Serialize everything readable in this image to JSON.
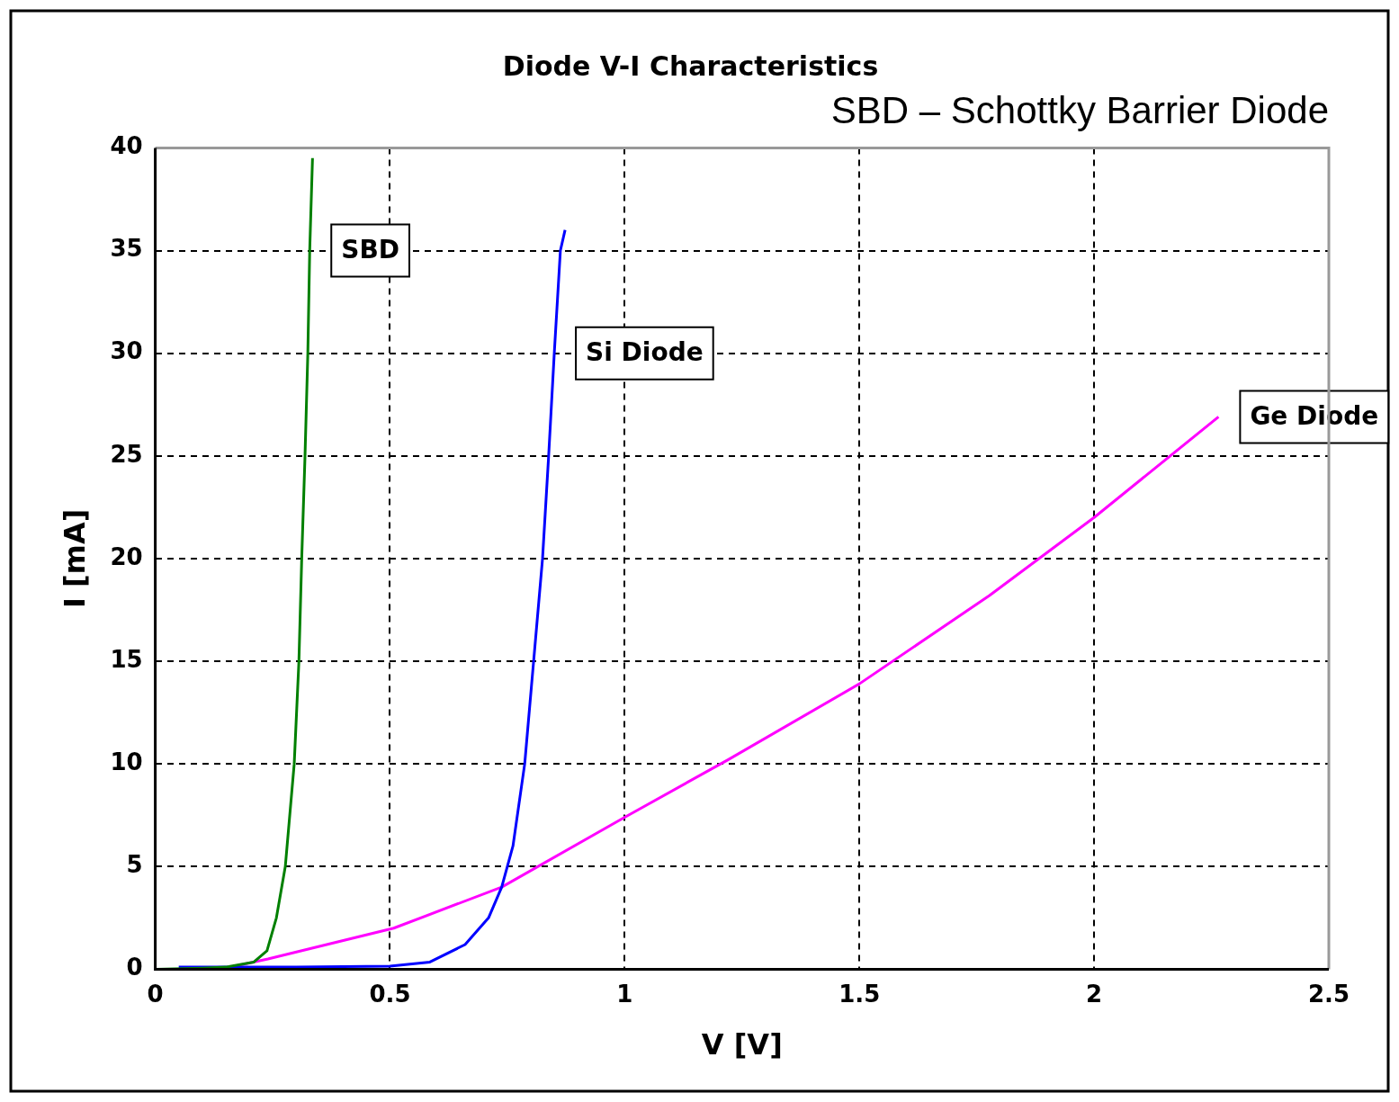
{
  "chart_data": {
    "type": "line",
    "title": "Diode V-I Characteristics",
    "subtitle": "SBD – Schottky Barrier Diode",
    "xlabel": "V [V]",
    "ylabel": "I [mA]",
    "xlim": [
      0,
      2.5
    ],
    "xticks": [
      0,
      0.5,
      1,
      1.5,
      2,
      2.5
    ],
    "ylim": [
      0,
      40
    ],
    "yticks": [
      0,
      5,
      10,
      15,
      20,
      25,
      30,
      35,
      40
    ],
    "grid": true,
    "legend": false,
    "marker": "none",
    "line_style": "solid",
    "series": [
      {
        "name": "SBD",
        "color": "#008000",
        "x": [
          0,
          0.1,
          0.15,
          0.21,
          0.238,
          0.258,
          0.277,
          0.296,
          0.306,
          0.312,
          0.319,
          0.325,
          0.329,
          0.335
        ],
        "values": [
          0,
          0.05,
          0.1,
          0.35,
          0.9,
          2.5,
          5,
          10,
          15,
          20,
          25,
          30,
          35,
          39.5
        ]
      },
      {
        "name": "Si Diode",
        "color": "#0000ff",
        "x": [
          0.05,
          0.3,
          0.5,
          0.585,
          0.66,
          0.71,
          0.738,
          0.762,
          0.787,
          0.806,
          0.825,
          0.838,
          0.85,
          0.863,
          0.873
        ],
        "values": [
          0.1,
          0.1,
          0.15,
          0.35,
          1.2,
          2.5,
          4,
          6,
          10,
          15,
          20,
          25,
          30,
          35,
          36
        ]
      },
      {
        "name": "Ge Diode",
        "color": "#ff00ff",
        "x": [
          0.14,
          0.24,
          0.508,
          0.738,
          1.0,
          1.22,
          1.5,
          1.777,
          2.0,
          2.265
        ],
        "values": [
          0,
          0.5,
          2,
          4,
          7.4,
          10.2,
          13.9,
          18.2,
          22,
          26.9
        ]
      }
    ]
  }
}
